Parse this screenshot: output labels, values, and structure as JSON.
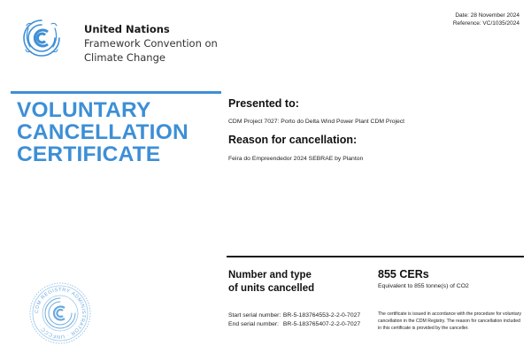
{
  "header": {
    "org_name": "United Nations",
    "org_line2": "Framework Convention on",
    "org_line3": "Climate Change",
    "date": "Date: 28 November 2024",
    "reference": "Reference: VC/1035/2024"
  },
  "title": {
    "line1": "VOLUNTARY",
    "line2": "CANCELLATION",
    "line3": "CERTIFICATE"
  },
  "presented": {
    "label": "Presented to:",
    "value": "CDM Project 7027: Porto do Delta Wind Power Plant CDM Project"
  },
  "reason": {
    "label": "Reason for cancellation:",
    "value": "Feira do Empreendedor 2024 SEBRAE by Planton"
  },
  "units": {
    "label_line1": "Number and type",
    "label_line2": "of units cancelled",
    "amount": "855 CERs",
    "equivalent": "Equivalent to 855 tonne(s) of CO2"
  },
  "serials": {
    "start_label": "Start serial number:",
    "start_value": "BR-5-183764553-2-2-0-7027",
    "end_label": "End serial number:",
    "end_value": "BR-5-183765407-2-2-0-7027"
  },
  "note": "The certificate is issued in accordance with the procedure for voluntary cancellation in the CDM Registry. The reason for cancellation included in this certificate is provided by the canceller.",
  "seal": {
    "ring_text": "CDM REGISTRY ADMINISTRATOR · UNFCCC ·"
  },
  "colors": {
    "accent": "#3d8fd6",
    "text": "#1a1a1a"
  },
  "icons": {
    "logo": "unfccc-logo-icon",
    "seal": "registry-seal-icon"
  }
}
